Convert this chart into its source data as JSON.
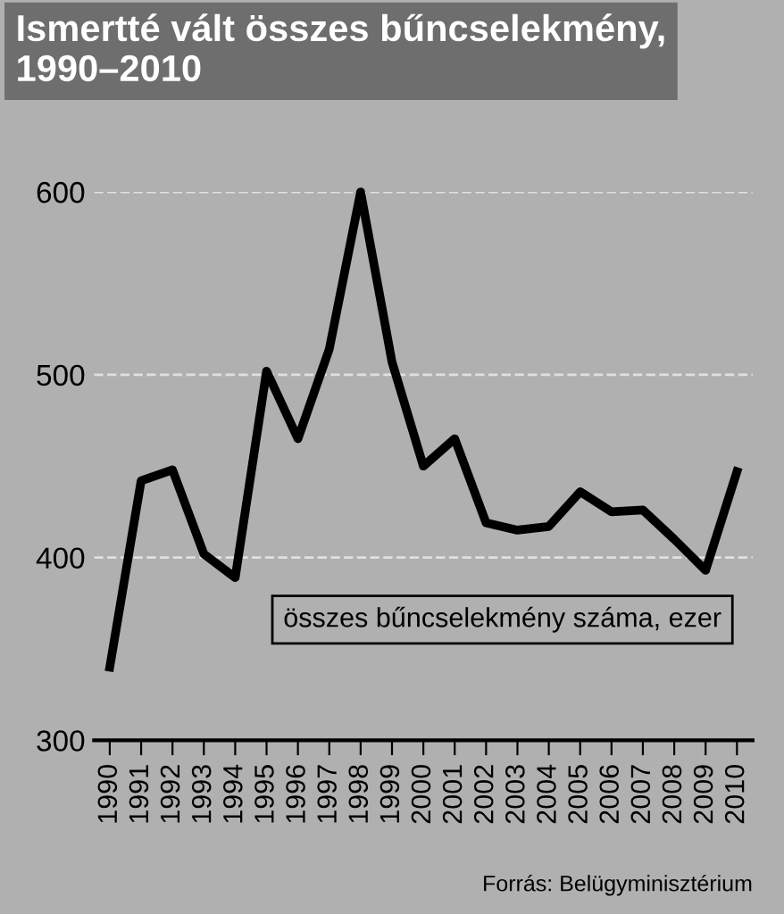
{
  "chart_data": {
    "type": "line",
    "title": "Ismertté vált összes bűncselekmény,\n1990–2010",
    "categories": [
      "1990",
      "1991",
      "1992",
      "1993",
      "1994",
      "1995",
      "1996",
      "1997",
      "1998",
      "1999",
      "2000",
      "2001",
      "2002",
      "2003",
      "2004",
      "2005",
      "2006",
      "2007",
      "2008",
      "2009",
      "2010"
    ],
    "series": [
      {
        "color": "#000000",
        "values": [
          340,
          442,
          448,
          402,
          389,
          502,
          465,
          514,
          600,
          507,
          450,
          465,
          419,
          415,
          417,
          436,
          425,
          426,
          410,
          393,
          447
        ]
      }
    ],
    "ylim": [
      300,
      600
    ],
    "yticks": [
      300,
      400,
      500,
      600
    ],
    "grid": "y",
    "marker": "none",
    "line_style": "solid",
    "annotations": [
      "összes bűncselekmény száma, ezer",
      "Forrás: Belügyminisztérium"
    ]
  }
}
